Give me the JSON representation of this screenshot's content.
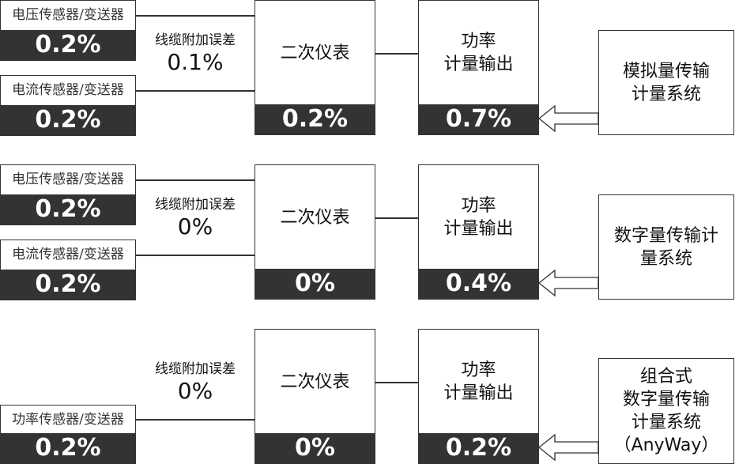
{
  "rows": [
    {
      "sensors": [
        {
          "label": "电压传感器/变送器",
          "value": "0.2%"
        },
        {
          "label": "电流传感器/变送器",
          "value": "0.2%"
        }
      ],
      "cable": {
        "label": "线缆附加误差",
        "value": "0.1%"
      },
      "meter": {
        "label": "二次仪表",
        "value": "0.2%"
      },
      "power": {
        "line1": "功率",
        "line2": "计量输出",
        "value": "0.7%"
      },
      "system": {
        "lines": [
          "模拟量传输",
          "计量系统"
        ]
      }
    },
    {
      "sensors": [
        {
          "label": "电压传感器/变送器",
          "value": "0.2%"
        },
        {
          "label": "电流传感器/变送器",
          "value": "0.2%"
        }
      ],
      "cable": {
        "label": "线缆附加误差",
        "value": "0%"
      },
      "meter": {
        "label": "二次仪表",
        "value": "0%"
      },
      "power": {
        "line1": "功率",
        "line2": "计量输出",
        "value": "0.4%"
      },
      "system": {
        "lines": [
          "数字量传输计",
          "量系统"
        ]
      }
    },
    {
      "sensors": [
        {
          "label": "功率传感器/变送器",
          "value": "0.2%"
        }
      ],
      "cable": {
        "label": "线缆附加误差",
        "value": "0%"
      },
      "meter": {
        "label": "二次仪表",
        "value": "0%"
      },
      "power": {
        "line1": "功率",
        "line2": "计量输出",
        "value": "0.2%"
      },
      "system": {
        "lines": [
          "组合式",
          "数字量传输",
          "计量系统",
          "（AnyWay）"
        ]
      }
    }
  ]
}
